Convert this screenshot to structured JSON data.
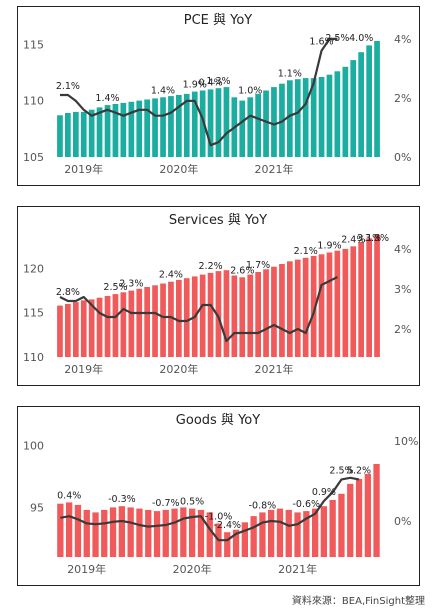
{
  "chart_data": [
    {
      "type": "bar",
      "title": "PCE 與 YoY",
      "bar_color": "#1aada0",
      "line_color": "#3a3a3a",
      "left_ylim": [
        105,
        116
      ],
      "left_ticks": [
        "105",
        "110",
        "115"
      ],
      "left_tick_values": [
        105,
        110,
        115
      ],
      "right_ylim": [
        0,
        4.2
      ],
      "right_ticks": [
        "0%",
        "2%",
        "4%"
      ],
      "right_tick_values": [
        0,
        2,
        4
      ],
      "x_ticks": [
        "2019年",
        "2020年",
        "2021年"
      ],
      "x_tick_index": [
        3,
        15,
        27
      ],
      "series": [
        {
          "name": "PCE",
          "values": [
            108.7,
            108.9,
            109.0,
            109.0,
            109.2,
            109.4,
            109.6,
            109.7,
            109.8,
            109.9,
            110.0,
            110.1,
            110.2,
            110.3,
            110.4,
            110.5,
            110.6,
            110.8,
            110.9,
            111.0,
            111.1,
            111.2,
            110.3,
            110.0,
            110.3,
            110.6,
            110.9,
            111.2,
            111.5,
            111.8,
            111.9,
            112.0,
            112.0,
            112.1,
            112.3,
            112.6,
            113.0,
            113.6,
            114.3,
            114.9,
            115.3
          ]
        },
        {
          "name": "YoY",
          "values": [
            2.1,
            2.1,
            1.9,
            1.6,
            1.4,
            1.5,
            1.6,
            1.5,
            1.4,
            1.5,
            1.6,
            1.6,
            1.4,
            1.4,
            1.5,
            1.7,
            1.9,
            1.9,
            1.3,
            0.4,
            0.5,
            0.8,
            1.0,
            1.2,
            1.4,
            1.3,
            1.2,
            1.1,
            1.2,
            1.4,
            1.5,
            1.8,
            2.5,
            3.6,
            4.0,
            4.0
          ]
        }
      ],
      "data_labels": [
        {
          "i": 1,
          "text": "2.1%"
        },
        {
          "i": 6,
          "text": "1.4%"
        },
        {
          "i": 13,
          "text": "1.4%"
        },
        {
          "i": 17,
          "text": "1.9%"
        },
        {
          "i": 19,
          "text": "0.4%"
        },
        {
          "i": 20,
          "text": "1.3%"
        },
        {
          "i": 24,
          "text": "1.0%"
        },
        {
          "i": 29,
          "text": "1.1%"
        },
        {
          "i": 33,
          "text": "1.6%"
        },
        {
          "i": 35,
          "text": "2.5%"
        },
        {
          "i": 38,
          "text": "4.0%"
        }
      ]
    },
    {
      "type": "bar",
      "title": "Services 與 YoY",
      "bar_color": "#f05a5a",
      "line_color": "#3a3a3a",
      "left_ylim": [
        110,
        124
      ],
      "left_ticks": [
        "110",
        "115",
        "120"
      ],
      "left_tick_values": [
        110,
        115,
        120
      ],
      "right_ylim": [
        1.3,
        4.4
      ],
      "right_ticks": [
        "2%",
        "3%",
        "4%"
      ],
      "right_tick_values": [
        2,
        3,
        4
      ],
      "x_ticks": [
        "2019年",
        "2020年",
        "2021年"
      ],
      "x_tick_index": [
        3,
        15,
        27
      ],
      "series": [
        {
          "name": "Services",
          "values": [
            115.8,
            116.0,
            116.2,
            116.4,
            116.5,
            116.7,
            116.9,
            117.1,
            117.3,
            117.5,
            117.7,
            117.9,
            118.1,
            118.3,
            118.5,
            118.7,
            118.9,
            119.1,
            119.3,
            119.5,
            119.7,
            119.8,
            119.2,
            119.0,
            119.3,
            119.6,
            119.9,
            120.2,
            120.5,
            120.8,
            121.0,
            121.2,
            121.4,
            121.6,
            121.8,
            122.0,
            122.2,
            122.5,
            123.0,
            123.4,
            123.8
          ]
        },
        {
          "name": "YoY",
          "values": [
            2.8,
            2.7,
            2.7,
            2.8,
            2.6,
            2.4,
            2.3,
            2.3,
            2.5,
            2.4,
            2.4,
            2.4,
            2.4,
            2.3,
            2.3,
            2.2,
            2.2,
            2.3,
            2.6,
            2.6,
            2.3,
            1.7,
            1.9,
            1.9,
            1.9,
            1.9,
            2.0,
            2.1,
            2.0,
            1.9,
            2.0,
            1.9,
            2.4,
            3.1,
            3.2,
            3.3
          ]
        }
      ],
      "data_labels": [
        {
          "i": 1,
          "text": "2.8%"
        },
        {
          "i": 7,
          "text": "2.5%"
        },
        {
          "i": 9,
          "text": "2.3%"
        },
        {
          "i": 14,
          "text": "2.4%"
        },
        {
          "i": 19,
          "text": "2.2%"
        },
        {
          "i": 23,
          "text": "2.6%"
        },
        {
          "i": 25,
          "text": "1.7%"
        },
        {
          "i": 31,
          "text": "2.1%"
        },
        {
          "i": 34,
          "text": "1.9%"
        },
        {
          "i": 37,
          "text": "2.4%"
        },
        {
          "i": 39,
          "text": "3.1%"
        },
        {
          "i": 40,
          "text": "3.3%"
        }
      ]
    },
    {
      "type": "bar",
      "title": "Goods 與 YoY",
      "bar_color": "#f05a5a",
      "line_color": "#3a3a3a",
      "left_ylim": [
        91,
        101
      ],
      "left_ticks": [
        "95",
        "100"
      ],
      "left_tick_values": [
        95,
        100
      ],
      "right_ylim": [
        -4.5,
        11
      ],
      "right_ticks": [
        "0%",
        "10%"
      ],
      "right_tick_values": [
        0,
        10
      ],
      "x_ticks": [
        "2019年",
        "2020年",
        "2021年"
      ],
      "x_tick_index": [
        3,
        15,
        27
      ],
      "series": [
        {
          "name": "Goods",
          "values": [
            95.3,
            95.4,
            95.2,
            94.8,
            94.6,
            94.8,
            95.0,
            95.1,
            95.0,
            94.9,
            94.8,
            94.7,
            94.8,
            94.9,
            95.0,
            94.9,
            94.8,
            94.6,
            93.7,
            93.0,
            93.2,
            93.8,
            94.3,
            94.6,
            94.8,
            94.9,
            94.8,
            94.6,
            94.7,
            94.9,
            95.1,
            95.6,
            96.1,
            96.9,
            97.3,
            97.7,
            98.5
          ]
        },
        {
          "name": "YoY",
          "values": [
            0.4,
            0.6,
            0.2,
            -0.3,
            -0.4,
            -0.3,
            -0.1,
            0.0,
            -0.2,
            -0.5,
            -0.7,
            -0.6,
            -0.5,
            -0.2,
            0.3,
            0.5,
            0.6,
            -1.0,
            -2.4,
            -2.4,
            -1.6,
            -1.2,
            -0.8,
            -0.2,
            0.0,
            -0.1,
            -0.6,
            -0.4,
            0.3,
            0.9,
            2.5,
            3.6,
            5.2,
            5.4,
            5.2
          ]
        }
      ],
      "data_labels": [
        {
          "i": 1,
          "text": "0.4%"
        },
        {
          "i": 7,
          "text": "-0.3%"
        },
        {
          "i": 12,
          "text": "-0.7%"
        },
        {
          "i": 15,
          "text": "0.5%"
        },
        {
          "i": 18,
          "text": "-1.0%"
        },
        {
          "i": 19,
          "text": "-2.4%"
        },
        {
          "i": 23,
          "text": "-0.8%"
        },
        {
          "i": 28,
          "text": "-0.6%"
        },
        {
          "i": 30,
          "text": "0.9%"
        },
        {
          "i": 32,
          "text": "2.5%"
        },
        {
          "i": 34,
          "text": "5.2%"
        }
      ]
    }
  ],
  "footer": {
    "source": "資料來源：BEA,FinSight整理"
  }
}
